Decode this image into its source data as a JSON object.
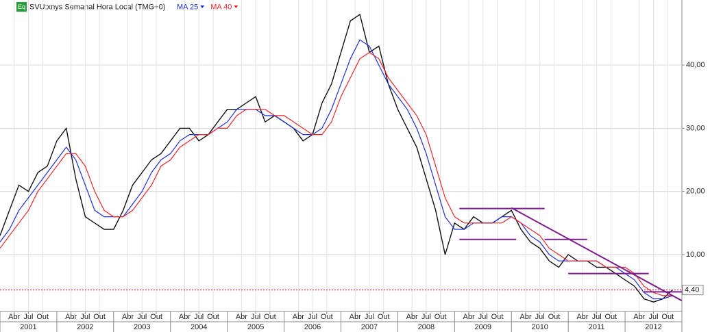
{
  "chart_data": {
    "type": "line",
    "title": "SVU:xnys Semanal Hora Local (TMG+0)",
    "badge": "Eq",
    "x": [
      "2001-01",
      "2001-03",
      "2001-05",
      "2001-07",
      "2001-09",
      "2001-11",
      "2002-01",
      "2002-03",
      "2002-05",
      "2002-07",
      "2002-09",
      "2002-11",
      "2003-01",
      "2003-03",
      "2003-05",
      "2003-07",
      "2003-09",
      "2003-11",
      "2004-01",
      "2004-03",
      "2004-05",
      "2004-07",
      "2004-09",
      "2004-11",
      "2005-01",
      "2005-03",
      "2005-05",
      "2005-07",
      "2005-09",
      "2005-11",
      "2006-01",
      "2006-03",
      "2006-05",
      "2006-07",
      "2006-09",
      "2006-11",
      "2007-01",
      "2007-03",
      "2007-05",
      "2007-07",
      "2007-09",
      "2007-11",
      "2008-01",
      "2008-03",
      "2008-05",
      "2008-07",
      "2008-09",
      "2008-11",
      "2009-01",
      "2009-03",
      "2009-05",
      "2009-07",
      "2009-09",
      "2009-11",
      "2010-01",
      "2010-03",
      "2010-05",
      "2010-07",
      "2010-09",
      "2010-11",
      "2011-01",
      "2011-03",
      "2011-05",
      "2011-07",
      "2011-09",
      "2011-11",
      "2012-01",
      "2012-03",
      "2012-05",
      "2012-07",
      "2012-09",
      "2012-11"
    ],
    "series": [
      {
        "name": "SVU",
        "color": "#111111",
        "values": [
          13,
          17,
          21,
          20,
          23,
          24,
          28,
          30,
          22,
          16,
          15,
          14,
          14,
          17,
          21,
          23,
          25,
          26,
          28,
          30,
          30,
          28,
          29,
          31,
          33,
          33,
          34,
          35,
          31,
          32,
          31,
          30,
          28,
          29,
          34,
          37,
          42,
          47,
          48,
          42,
          43,
          37,
          33,
          30,
          27,
          22,
          17,
          10,
          15,
          14,
          16,
          15,
          15,
          16,
          17,
          14,
          12,
          11,
          9,
          8,
          10,
          9,
          9,
          8,
          8,
          7,
          6,
          5,
          3,
          2.5,
          3,
          4.4
        ]
      },
      {
        "name": "MA 25",
        "color": "#1f2fd8",
        "values": [
          12,
          14,
          17,
          19,
          21,
          23,
          25,
          27,
          25,
          21,
          17,
          16,
          16,
          16,
          18,
          20,
          23,
          25,
          26,
          28,
          29,
          29,
          29,
          30,
          31,
          33,
          33,
          33,
          32,
          32,
          31,
          30,
          29,
          29,
          30,
          33,
          37,
          41,
          44,
          43,
          40,
          37,
          35,
          33,
          30,
          26,
          21,
          16,
          14,
          14,
          15,
          15,
          15,
          16,
          16,
          15,
          13,
          12,
          10,
          9,
          9,
          9,
          9,
          9,
          8,
          8,
          7,
          6,
          4,
          3,
          3,
          3.5
        ]
      },
      {
        "name": "MA 40",
        "color": "#e8262b",
        "values": [
          11,
          13,
          15,
          17,
          20,
          22,
          24,
          26,
          26,
          24,
          20,
          17,
          16,
          16,
          17,
          19,
          21,
          24,
          25,
          27,
          28,
          29,
          29,
          30,
          30,
          32,
          33,
          33,
          33,
          32,
          32,
          31,
          30,
          29,
          29,
          31,
          35,
          38,
          41,
          42,
          41,
          38,
          36,
          34,
          32,
          29,
          24,
          19,
          16,
          15,
          15,
          15,
          15,
          15,
          16,
          15,
          14,
          13,
          11,
          10,
          9,
          9,
          9,
          9,
          8,
          8,
          8,
          7,
          5,
          4,
          3.5,
          3.5
        ]
      }
    ],
    "trendlines": [
      {
        "x": [
          "2009-02",
          "2010-08"
        ],
        "y": [
          17.3,
          17.3
        ]
      },
      {
        "x": [
          "2009-02",
          "2010-02"
        ],
        "y": [
          12.4,
          12.4
        ]
      },
      {
        "x": [
          "2010-08",
          "2011-05"
        ],
        "y": [
          12.4,
          12.4
        ]
      },
      {
        "x": [
          "2011-01",
          "2012-06"
        ],
        "y": [
          7.0,
          7.0
        ]
      },
      {
        "x": [
          "2012-05",
          "2013-01"
        ],
        "y": [
          4.1,
          4.1
        ]
      },
      {
        "x": [
          "2010-01",
          "2013-01"
        ],
        "y": [
          17.4,
          2.7
        ]
      }
    ],
    "last_value": {
      "value": 4.4,
      "label": "4,40"
    },
    "xlim": [
      "2001-01",
      "2013-01"
    ],
    "ylim": [
      1,
      50.3
    ],
    "yticks": [
      {
        "value": 10,
        "label": "10,00"
      },
      {
        "value": 20,
        "label": "20,00"
      },
      {
        "value": 30,
        "label": "30,00"
      },
      {
        "value": 40,
        "label": "40,00"
      }
    ],
    "xticks": [
      {
        "value": "2001-04",
        "label": "Abr"
      },
      {
        "value": "2001-07",
        "label": "Jul"
      },
      {
        "value": "2001-10",
        "label": "Out"
      },
      {
        "value": "2002-04",
        "label": "Abr"
      },
      {
        "value": "2002-07",
        "label": "Jul"
      },
      {
        "value": "2002-10",
        "label": "Out"
      },
      {
        "value": "2003-04",
        "label": "Abr"
      },
      {
        "value": "2003-07",
        "label": "Jul"
      },
      {
        "value": "2003-10",
        "label": "Out"
      },
      {
        "value": "2004-04",
        "label": "Abr"
      },
      {
        "value": "2004-07",
        "label": "Jul"
      },
      {
        "value": "2004-10",
        "label": "Out"
      },
      {
        "value": "2005-04",
        "label": "Abr"
      },
      {
        "value": "2005-07",
        "label": "Jul"
      },
      {
        "value": "2005-10",
        "label": "Out"
      },
      {
        "value": "2006-04",
        "label": "Abr"
      },
      {
        "value": "2006-07",
        "label": "Jul"
      },
      {
        "value": "2006-10",
        "label": "Out"
      },
      {
        "value": "2007-04",
        "label": "Abr"
      },
      {
        "value": "2007-07",
        "label": "Jul"
      },
      {
        "value": "2007-10",
        "label": "Out"
      },
      {
        "value": "2008-04",
        "label": "Abr"
      },
      {
        "value": "2008-07",
        "label": "Jul"
      },
      {
        "value": "2008-10",
        "label": "Out"
      },
      {
        "value": "2009-04",
        "label": "Abr"
      },
      {
        "value": "2009-07",
        "label": "Jul"
      },
      {
        "value": "2009-10",
        "label": "Out"
      },
      {
        "value": "2010-04",
        "label": "Abr"
      },
      {
        "value": "2010-07",
        "label": "Jul"
      },
      {
        "value": "2010-10",
        "label": "Out"
      },
      {
        "value": "2011-04",
        "label": "Abr"
      },
      {
        "value": "2011-07",
        "label": "Jul"
      },
      {
        "value": "2011-10",
        "label": "Out"
      },
      {
        "value": "2012-04",
        "label": "Abr"
      },
      {
        "value": "2012-07",
        "label": "Jul"
      },
      {
        "value": "2012-10",
        "label": "Out"
      }
    ],
    "years": [
      "2001",
      "2002",
      "2003",
      "2004",
      "2005",
      "2006",
      "2007",
      "2008",
      "2009",
      "2010",
      "2011",
      "2012"
    ],
    "grid": true
  }
}
